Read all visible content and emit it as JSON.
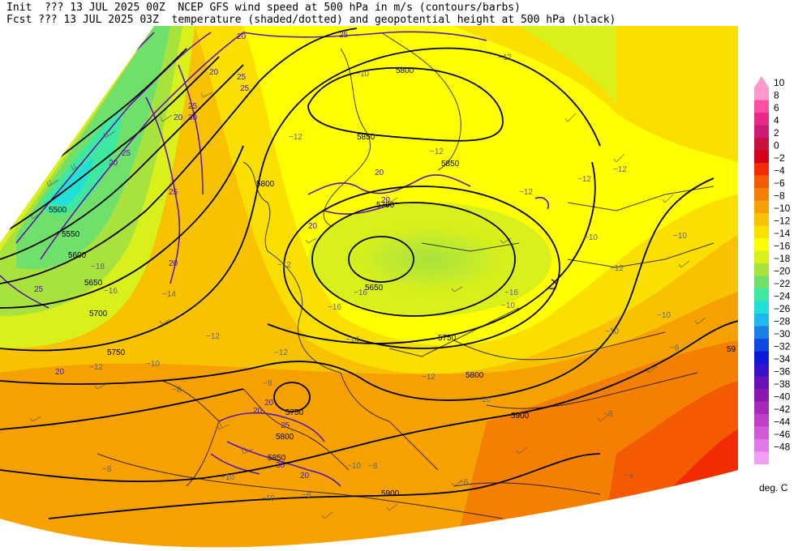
{
  "header": {
    "line1": "Init  ??? 13 JUL 2025 00Z  NCEP GFS wind speed at 500 hPa in m/s (contours/barbs)",
    "line2": "Fcst ??? 13 JUL 2025 03Z  temperature (shaded/dotted) and geopotential height at 500 hPa (black)"
  },
  "legend": {
    "unit": "deg. C",
    "levels": [
      {
        "label": "10",
        "color": "#ff99cc"
      },
      {
        "label": "8",
        "color": "#ff4fa3"
      },
      {
        "label": "6",
        "color": "#e8288a"
      },
      {
        "label": "4",
        "color": "#cc1a78"
      },
      {
        "label": "2",
        "color": "#c8103c"
      },
      {
        "label": "0",
        "color": "#d4001a"
      },
      {
        "label": "−2",
        "color": "#f22b00"
      },
      {
        "label": "−4",
        "color": "#f45a00"
      },
      {
        "label": "−6",
        "color": "#f47f00"
      },
      {
        "label": "−8",
        "color": "#f7a100"
      },
      {
        "label": "−10",
        "color": "#f9c200"
      },
      {
        "label": "−12",
        "color": "#fadf00"
      },
      {
        "label": "−14",
        "color": "#ffff00"
      },
      {
        "label": "−16",
        "color": "#d9f01a"
      },
      {
        "label": "−18",
        "color": "#a8e23c"
      },
      {
        "label": "−20",
        "color": "#6fe06a"
      },
      {
        "label": "−22",
        "color": "#3fe8a0"
      },
      {
        "label": "−24",
        "color": "#22e0d8"
      },
      {
        "label": "−26",
        "color": "#20b8f0"
      },
      {
        "label": "−28",
        "color": "#1a80e8"
      },
      {
        "label": "−30",
        "color": "#0f4ae0"
      },
      {
        "label": "−32",
        "color": "#0a1ad8"
      },
      {
        "label": "−34",
        "color": "#3a10c8"
      },
      {
        "label": "−36",
        "color": "#6a10b8"
      },
      {
        "label": "−38",
        "color": "#8a18b0"
      },
      {
        "label": "−40",
        "color": "#a828b8"
      },
      {
        "label": "−42",
        "color": "#c03ec8"
      },
      {
        "label": "−44",
        "color": "#d05ad8"
      },
      {
        "label": "−46",
        "color": "#e07ae8"
      },
      {
        "label": "−48",
        "color": "#f0a0f4"
      }
    ]
  },
  "height_labels": [
    {
      "text": "5500"
    },
    {
      "text": "5550"
    },
    {
      "text": "5600"
    },
    {
      "text": "5650"
    },
    {
      "text": "5700"
    },
    {
      "text": "5750"
    },
    {
      "text": "5800"
    },
    {
      "text": "5850"
    },
    {
      "text": "5650"
    },
    {
      "text": "5700"
    },
    {
      "text": "5750"
    },
    {
      "text": "5800"
    },
    {
      "text": "5850"
    },
    {
      "text": "5900"
    },
    {
      "text": "5750"
    },
    {
      "text": "5800"
    },
    {
      "text": "5850"
    },
    {
      "text": "5800"
    },
    {
      "text": "5900"
    },
    {
      "text": "59"
    }
  ],
  "wind_labels": [
    {
      "text": "20"
    },
    {
      "text": "25"
    },
    {
      "text": "20"
    },
    {
      "text": "25"
    },
    {
      "text": "20"
    },
    {
      "text": "30"
    },
    {
      "text": "25"
    },
    {
      "text": "20"
    },
    {
      "text": "25"
    },
    {
      "text": "20"
    },
    {
      "text": "20"
    },
    {
      "text": "25"
    },
    {
      "text": "20"
    },
    {
      "text": "20"
    },
    {
      "text": "20"
    },
    {
      "text": "25"
    },
    {
      "text": "20"
    },
    {
      "text": "20"
    },
    {
      "text": "25"
    },
    {
      "text": "30"
    },
    {
      "text": "20"
    },
    {
      "text": "25"
    }
  ],
  "temp_labels": [
    {
      "text": "−18"
    },
    {
      "text": "−16"
    },
    {
      "text": "−14"
    },
    {
      "text": "−12"
    },
    {
      "text": "−10"
    },
    {
      "text": "−12"
    },
    {
      "text": "−12"
    },
    {
      "text": "−12"
    },
    {
      "text": "−10"
    },
    {
      "text": "−12"
    },
    {
      "text": "−12"
    },
    {
      "text": "−12"
    },
    {
      "text": "−16"
    },
    {
      "text": "−16"
    },
    {
      "text": "−16"
    },
    {
      "text": "−14"
    },
    {
      "text": "−12"
    },
    {
      "text": "−12"
    },
    {
      "text": "−10"
    },
    {
      "text": "−10"
    },
    {
      "text": "−12"
    },
    {
      "text": "−10"
    },
    {
      "text": "−8"
    },
    {
      "text": "−8"
    },
    {
      "text": "−10"
    },
    {
      "text": "−10"
    },
    {
      "text": "−8"
    },
    {
      "text": "−8"
    },
    {
      "text": "−6"
    },
    {
      "text": "−4"
    },
    {
      "text": "−8"
    },
    {
      "text": "−10"
    },
    {
      "text": "−10"
    },
    {
      "text": "−8"
    },
    {
      "text": "−12"
    },
    {
      "text": "−10"
    },
    {
      "text": "−12"
    },
    {
      "text": "−10"
    },
    {
      "text": "−6"
    }
  ]
}
